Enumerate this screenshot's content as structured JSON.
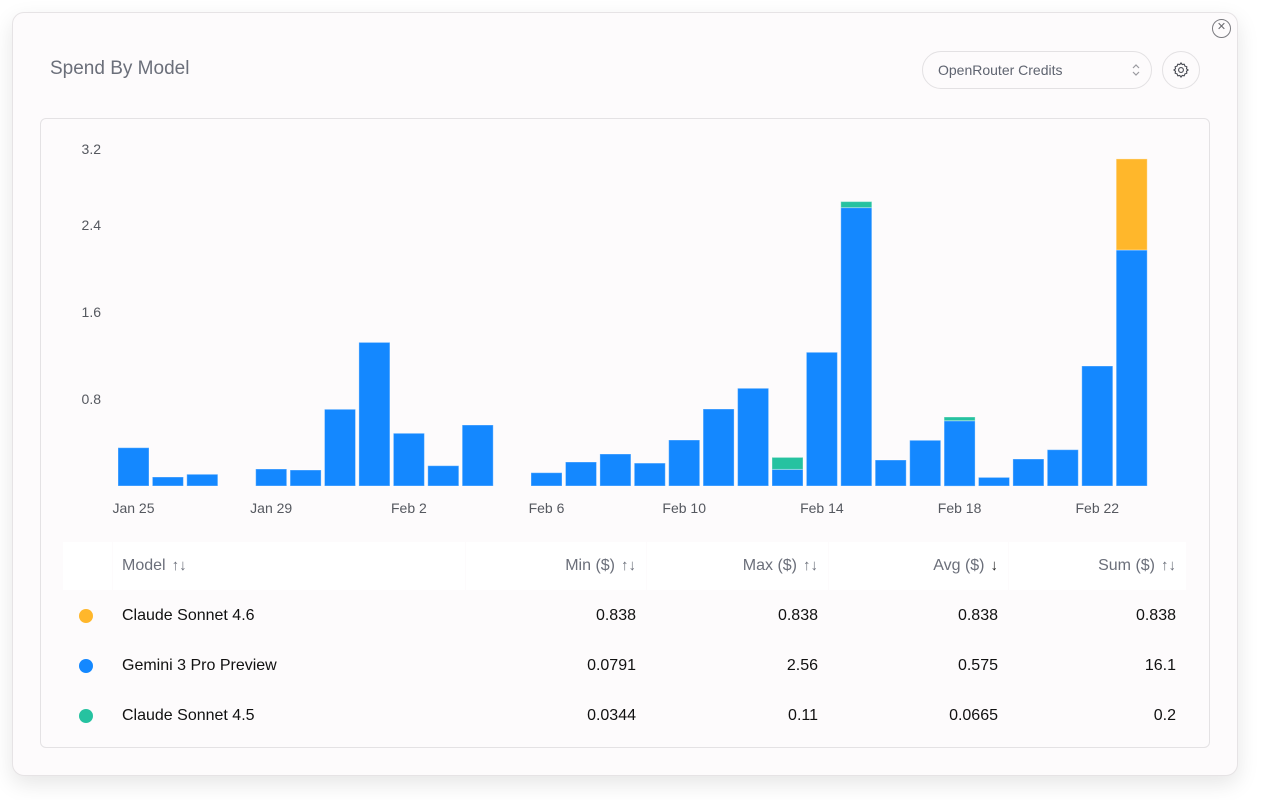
{
  "header": {
    "title": "Spend By Model",
    "select_value": "OpenRouter Credits",
    "close_icon": "close-circle-icon",
    "settings_icon": "gear-icon",
    "select_icon": "chevron-up-down-icon"
  },
  "colors": {
    "Claude Sonnet 4.6": "#FFB72B",
    "Gemini 3 Pro Preview": "#1488FF",
    "Claude Sonnet 4.5": "#26C2A0"
  },
  "chart_data": {
    "type": "bar",
    "stacked": true,
    "title": "",
    "xlabel": "",
    "ylabel": "",
    "ylim": [
      0,
      3.2
    ],
    "yticks": [
      "0.8",
      "1.6",
      "2.4",
      "3.2"
    ],
    "xtick_labels": [
      "Jan 25",
      "Jan 29",
      "Feb 2",
      "Feb 6",
      "Feb 10",
      "Feb 14",
      "Feb 18",
      "Feb 22"
    ],
    "grid": false,
    "categories": [
      "Jan 25",
      "Jan 26",
      "Jan 27",
      "Jan 28",
      "Jan 29",
      "Jan 30",
      "Jan 31",
      "Feb 1",
      "Feb 2",
      "Feb 3",
      "Feb 4",
      "Feb 5",
      "Feb 6",
      "Feb 7",
      "Feb 8",
      "Feb 9",
      "Feb 10",
      "Feb 11",
      "Feb 12",
      "Feb 13",
      "Feb 14",
      "Feb 15",
      "Feb 16",
      "Feb 17",
      "Feb 18",
      "Feb 19",
      "Feb 20",
      "Feb 21",
      "Feb 22",
      "Feb 23"
    ],
    "series": [
      {
        "name": "Gemini 3 Pro Preview",
        "values": [
          0.352,
          0.083,
          0.108,
          0,
          0.156,
          0.147,
          0.705,
          1.32,
          0.485,
          0.187,
          0.561,
          0,
          0.122,
          0.221,
          0.294,
          0.211,
          0.423,
          0.708,
          0.898,
          0.153,
          1.229,
          2.56,
          0.239,
          0.42,
          0.6,
          0.0791,
          0.248,
          0.334,
          1.103,
          2.17
        ]
      },
      {
        "name": "Claude Sonnet 4.5",
        "values": [
          0,
          0,
          0,
          0,
          0,
          0,
          0,
          0,
          0,
          0,
          0,
          0,
          0,
          0,
          0,
          0,
          0,
          0,
          0,
          0.11,
          0,
          0.0551,
          0,
          0,
          0.0344,
          0,
          0,
          0,
          0,
          0
        ]
      },
      {
        "name": "Claude Sonnet 4.6",
        "values": [
          0,
          0,
          0,
          0,
          0,
          0,
          0,
          0,
          0,
          0,
          0,
          0,
          0,
          0,
          0,
          0,
          0,
          0,
          0,
          0,
          0,
          0,
          0,
          0,
          0,
          0,
          0,
          0,
          0,
          0.838
        ]
      }
    ]
  },
  "table": {
    "columns": [
      {
        "label": "Model",
        "sort_icon": "sort-both-icon",
        "sort": "↑↓"
      },
      {
        "label": "Min ($)",
        "sort_icon": "sort-both-icon",
        "sort": "↑↓"
      },
      {
        "label": "Max ($)",
        "sort_icon": "sort-both-icon",
        "sort": "↑↓"
      },
      {
        "label": "Avg ($)",
        "sort_icon": "sort-desc-icon",
        "sort": "↓"
      },
      {
        "label": "Sum ($)",
        "sort_icon": "sort-both-icon",
        "sort": "↑↓"
      }
    ],
    "rows": [
      {
        "model": "Claude Sonnet 4.6",
        "color": "#FFB72B",
        "min": "0.838",
        "max": "0.838",
        "avg": "0.838",
        "sum": "0.838"
      },
      {
        "model": "Gemini 3 Pro Preview",
        "color": "#1488FF",
        "min": "0.0791",
        "max": "2.56",
        "avg": "0.575",
        "sum": "16.1"
      },
      {
        "model": "Claude Sonnet 4.5",
        "color": "#26C2A0",
        "min": "0.0344",
        "max": "0.11",
        "avg": "0.0665",
        "sum": "0.2"
      }
    ]
  }
}
